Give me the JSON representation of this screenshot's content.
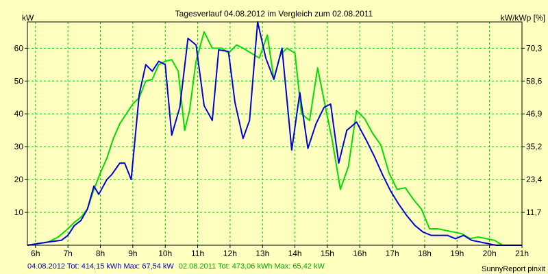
{
  "chart_data": {
    "type": "line",
    "title": "Tagesverlauf 04.08.2012 im Vergleich zum 02.08.2011",
    "ylabel_left": "kW",
    "ylabel_right": "kW/kWp [%]",
    "xlim": [
      5.75,
      21
    ],
    "ylim": [
      0,
      68
    ],
    "x_ticks": [
      {
        "value": 6,
        "label": "6h"
      },
      {
        "value": 7,
        "label": "7h"
      },
      {
        "value": 8,
        "label": "8h"
      },
      {
        "value": 9,
        "label": "9h"
      },
      {
        "value": 10,
        "label": "10h"
      },
      {
        "value": 11,
        "label": "11h"
      },
      {
        "value": 12,
        "label": "12h"
      },
      {
        "value": 13,
        "label": "13h"
      },
      {
        "value": 14,
        "label": "14h"
      },
      {
        "value": 15,
        "label": "15h"
      },
      {
        "value": 16,
        "label": "16h"
      },
      {
        "value": 17,
        "label": "17h"
      },
      {
        "value": 18,
        "label": "18h"
      },
      {
        "value": 19,
        "label": "19h"
      },
      {
        "value": 20,
        "label": "20h"
      },
      {
        "value": 21,
        "label": "21h"
      }
    ],
    "y_ticks_left": [
      {
        "value": 10,
        "label": "10"
      },
      {
        "value": 20,
        "label": "20"
      },
      {
        "value": 30,
        "label": "30"
      },
      {
        "value": 40,
        "label": "40"
      },
      {
        "value": 50,
        "label": "50"
      },
      {
        "value": 60,
        "label": "60"
      }
    ],
    "y_ticks_right": [
      {
        "value": 10,
        "label": "11,7"
      },
      {
        "value": 20,
        "label": "23,4"
      },
      {
        "value": 30,
        "label": "35,2"
      },
      {
        "value": 40,
        "label": "46,9"
      },
      {
        "value": 50,
        "label": "58,6"
      },
      {
        "value": 60,
        "label": "70,3"
      }
    ],
    "grid": true,
    "series": [
      {
        "name": "04.08.2012",
        "color": "#0000dd",
        "x": [
          5.75,
          6.4,
          6.8,
          7.0,
          7.2,
          7.4,
          7.6,
          7.8,
          7.95,
          8.2,
          8.35,
          8.6,
          8.75,
          8.95,
          9.2,
          9.4,
          9.6,
          9.8,
          10.0,
          10.2,
          10.45,
          10.7,
          10.95,
          11.2,
          11.45,
          11.65,
          11.95,
          12.15,
          12.4,
          12.6,
          12.85,
          13.1,
          13.35,
          13.6,
          13.9,
          14.15,
          14.4,
          14.65,
          14.9,
          15.1,
          15.35,
          15.6,
          15.9,
          16.2,
          16.45,
          16.7,
          16.95,
          17.2,
          17.45,
          17.7,
          17.95,
          18.2,
          18.45,
          18.7,
          18.95,
          19.2,
          19.45,
          19.7,
          19.95,
          20.2,
          20.45,
          20.75,
          21.0
        ],
        "values": [
          0,
          1,
          1.5,
          3,
          6,
          7.5,
          11,
          18,
          15.5,
          20,
          21.5,
          25,
          25,
          20,
          46,
          55,
          53,
          56,
          55,
          33.5,
          42,
          63,
          61,
          42.5,
          38,
          59.5,
          59,
          43.5,
          32.5,
          38,
          68,
          57,
          50.5,
          60,
          29,
          46.5,
          29.5,
          37,
          42,
          43,
          25,
          35,
          37.5,
          32,
          27,
          21.5,
          16.5,
          12.5,
          9,
          6,
          4,
          3,
          3,
          3,
          2,
          3,
          1.5,
          1,
          0.5,
          0,
          0,
          0,
          0
        ]
      },
      {
        "name": "02.08.2011",
        "color": "#00dd00",
        "x": [
          5.75,
          6.4,
          6.7,
          7.0,
          7.2,
          7.4,
          7.6,
          7.8,
          8.0,
          8.2,
          8.4,
          8.6,
          8.8,
          9.0,
          9.2,
          9.4,
          9.6,
          9.8,
          10.0,
          10.2,
          10.4,
          10.6,
          10.75,
          10.95,
          11.2,
          11.45,
          11.75,
          11.95,
          12.2,
          12.4,
          12.65,
          12.9,
          13.15,
          13.35,
          13.55,
          13.75,
          14.0,
          14.2,
          14.45,
          14.7,
          14.95,
          15.15,
          15.4,
          15.65,
          15.9,
          16.15,
          16.4,
          16.65,
          16.9,
          17.15,
          17.4,
          17.65,
          17.9,
          18.15,
          18.4,
          18.65,
          18.9,
          19.15,
          19.4,
          19.65,
          19.9,
          20.15,
          20.4,
          20.7,
          21.0
        ],
        "values": [
          0,
          1,
          2.5,
          5,
          7,
          8.5,
          11,
          17,
          22,
          26.5,
          32.5,
          37,
          40,
          43,
          45,
          50,
          50.5,
          55,
          56,
          56.5,
          53,
          35,
          41,
          56,
          65,
          60,
          60,
          58.5,
          61,
          60,
          58.5,
          57,
          64,
          50.5,
          58,
          60,
          58.5,
          40,
          38,
          54,
          41.5,
          32,
          17,
          24,
          41,
          38.5,
          34,
          30.5,
          22,
          17,
          17.5,
          14,
          11,
          5,
          5,
          4.5,
          4,
          3.5,
          2,
          2.5,
          2,
          1.5,
          0,
          0,
          0
        ]
      }
    ],
    "footer": {
      "series1_text": "04.08.2012 Tot: 414,15 kWh Max: 67,54 kW",
      "series2_text": "02.08.2011 Tot: 473,06 kWh Max: 65,42 kW",
      "credit": "SunnyReport pinxit"
    },
    "colors": {
      "background": "#ffffc0",
      "grid": "#00cc00",
      "axis": "#000000",
      "footer_series1": "#0000cc",
      "footer_series2": "#00aa00"
    }
  }
}
